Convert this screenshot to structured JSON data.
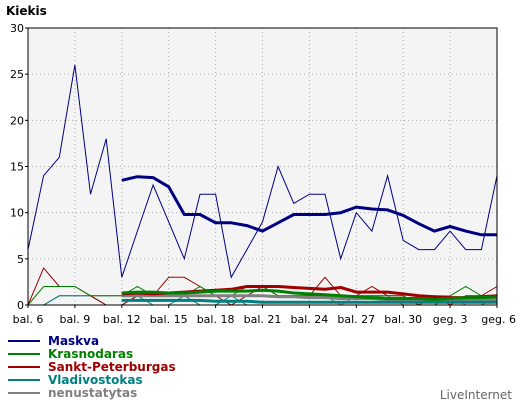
{
  "chart_data": {
    "type": "line",
    "title": "",
    "ylabel": "Kiekis",
    "xlabel": "",
    "ylim": [
      0,
      30
    ],
    "yticks": [
      0,
      5,
      10,
      15,
      20,
      25,
      30
    ],
    "xticks": [
      {
        "index": 0,
        "label": "bal. 6"
      },
      {
        "index": 3,
        "label": "bal. 9"
      },
      {
        "index": 6,
        "label": "bal. 12"
      },
      {
        "index": 9,
        "label": "bal. 15"
      },
      {
        "index": 12,
        "label": "bal. 18"
      },
      {
        "index": 15,
        "label": "bal. 21"
      },
      {
        "index": 18,
        "label": "bal. 24"
      },
      {
        "index": 21,
        "label": "bal. 27"
      },
      {
        "index": 24,
        "label": "bal. 30"
      },
      {
        "index": 27,
        "label": "geg. 3"
      },
      {
        "index": 30,
        "label": "geg. 6"
      }
    ],
    "grid": true,
    "legend": "bottom-left",
    "series": [
      {
        "name": "Maskva",
        "color": "#000080",
        "values": [
          6,
          14,
          16,
          26,
          12,
          18,
          3,
          8,
          13,
          9,
          5,
          12,
          12,
          3,
          6,
          9,
          15,
          11,
          12,
          12,
          5,
          10,
          8,
          14,
          7,
          6,
          6,
          8,
          6,
          6,
          14
        ],
        "moving_avg_start": 6,
        "moving_avg": [
          13.5,
          13.9,
          13.8,
          12.8,
          9.8,
          9.8,
          8.9,
          8.9,
          8.6,
          8.0,
          8.9,
          9.8,
          9.8,
          9.8,
          10.0,
          10.6,
          10.4,
          10.3,
          9.7,
          8.8,
          8.0,
          8.5,
          8.0,
          7.6,
          7.6
        ]
      },
      {
        "name": "Krasnodaras",
        "color": "#008000",
        "values": [
          0,
          2,
          2,
          2,
          1,
          1,
          1,
          2,
          1,
          1,
          1,
          2,
          1,
          1,
          2,
          2,
          1,
          1,
          1,
          1,
          1,
          1,
          1,
          1,
          1,
          0,
          0,
          1,
          2,
          1,
          1
        ],
        "moving_avg_start": 6,
        "moving_avg": [
          1.3,
          1.4,
          1.4,
          1.3,
          1.3,
          1.4,
          1.5,
          1.5,
          1.5,
          1.6,
          1.5,
          1.3,
          1.2,
          1.1,
          1.0,
          0.9,
          0.8,
          0.7,
          0.7,
          0.7,
          0.6,
          0.7,
          0.8,
          0.8,
          0.9
        ]
      },
      {
        "name": "Sankt-Peterburgas",
        "color": "#a00000",
        "values": [
          0,
          4,
          2,
          2,
          1,
          0,
          0,
          1,
          1,
          3,
          3,
          2,
          1,
          0,
          1,
          2,
          1,
          1,
          1,
          3,
          1,
          1,
          2,
          1,
          1,
          0,
          1,
          0,
          1,
          1,
          2
        ],
        "moving_avg_start": 6,
        "moving_avg": [
          1.2,
          1.3,
          1.2,
          1.3,
          1.4,
          1.5,
          1.6,
          1.7,
          2.0,
          2.0,
          2.0,
          1.9,
          1.8,
          1.7,
          1.9,
          1.4,
          1.4,
          1.4,
          1.2,
          1.0,
          0.9,
          0.8,
          0.8,
          0.9,
          1.0
        ]
      },
      {
        "name": "Vladivostokas",
        "color": "#008080",
        "values": [
          0,
          0,
          1,
          1,
          1,
          0,
          0,
          1,
          0,
          0,
          1,
          0,
          0,
          1,
          0,
          0,
          0,
          0,
          0,
          0,
          0,
          0,
          0,
          0,
          0,
          0,
          0,
          0,
          0,
          0,
          1
        ],
        "moving_avg_start": 6,
        "moving_avg": [
          0.5,
          0.5,
          0.5,
          0.5,
          0.5,
          0.5,
          0.4,
          0.4,
          0.4,
          0.3,
          0.3,
          0.3,
          0.3,
          0.3,
          0.3,
          0.3,
          0.3,
          0.3,
          0.3,
          0.3,
          0.3,
          0.3,
          0.3,
          0.3,
          0.3
        ]
      },
      {
        "name": "nenustatytas",
        "color": "#808080",
        "values": [
          0,
          0,
          1,
          1,
          1,
          1,
          1,
          1,
          1,
          1,
          1,
          1,
          1,
          1,
          1,
          1,
          1,
          1,
          1,
          1,
          0,
          1,
          1,
          1,
          0,
          0,
          1,
          1,
          0,
          0,
          1
        ],
        "moving_avg_start": 6,
        "moving_avg": [
          1.0,
          1.0,
          1.0,
          1.0,
          1.0,
          1.0,
          1.0,
          1.0,
          1.0,
          1.0,
          0.9,
          0.9,
          0.8,
          0.8,
          0.7,
          0.7,
          0.7,
          0.6,
          0.6,
          0.6,
          0.6,
          0.6,
          0.6,
          0.6,
          0.6
        ]
      }
    ]
  },
  "brand": "LiveInternet"
}
